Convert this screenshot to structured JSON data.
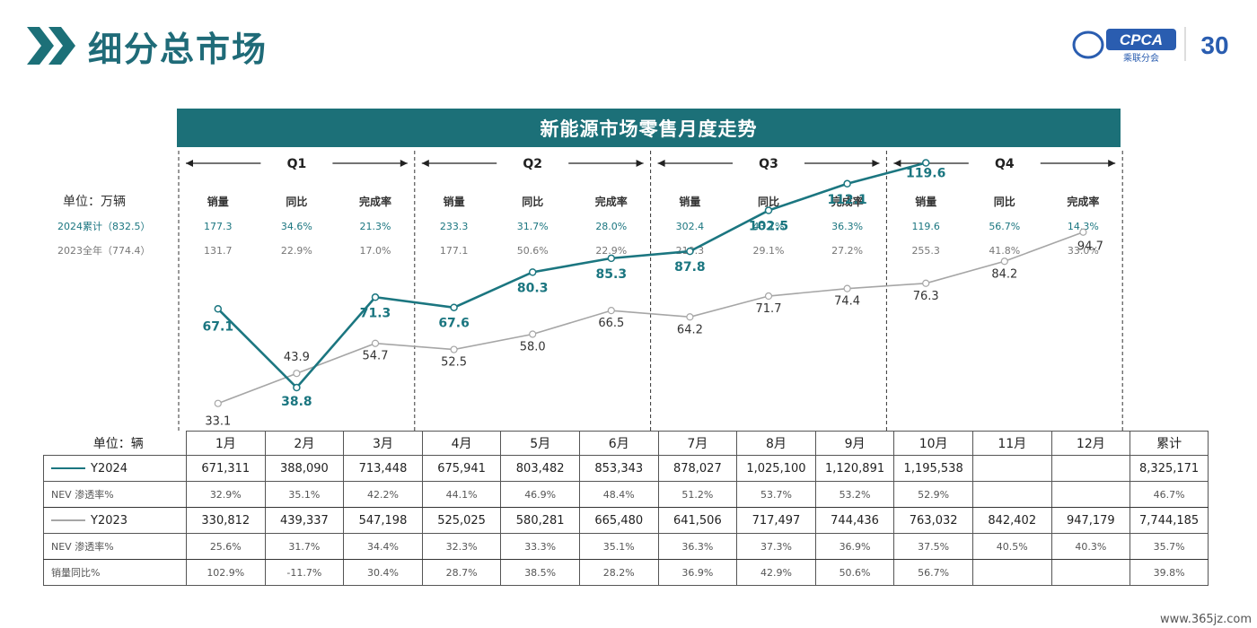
{
  "page_title": "细分总市场",
  "logo": {
    "text": "CPCA",
    "subtext": "乘联分会",
    "badge": "30"
  },
  "chart_data": {
    "type": "line",
    "title": "新能源市场零售月度走势",
    "quarters": [
      "Q1",
      "Q2",
      "Q3",
      "Q4"
    ],
    "unit_label": "单位：万辆",
    "row_2024_label": "2024累计（832.5）",
    "row_2023_label": "2023全年（774.4）",
    "summary_headers": [
      "销量",
      "同比",
      "完成率"
    ],
    "summary_2024": [
      [
        "177.3",
        "34.6%",
        "21.3%"
      ],
      [
        "233.3",
        "31.7%",
        "28.0%"
      ],
      [
        "302.4",
        "43.7%",
        "36.3%"
      ],
      [
        "119.6",
        "56.7%",
        "14.3%"
      ]
    ],
    "summary_2023": [
      [
        "131.7",
        "22.9%",
        "17.0%"
      ],
      [
        "177.1",
        "50.6%",
        "22.9%"
      ],
      [
        "210.3",
        "29.1%",
        "27.2%"
      ],
      [
        "255.3",
        "41.8%",
        "33.0%"
      ]
    ],
    "series": [
      {
        "name": "Y2024",
        "color": "#1b7680",
        "values": [
          67.1,
          38.8,
          71.3,
          67.6,
          80.3,
          85.3,
          87.8,
          102.5,
          112.1,
          119.6
        ]
      },
      {
        "name": "Y2023",
        "color": "#a6a6a6",
        "values": [
          33.1,
          43.9,
          54.7,
          52.5,
          58.0,
          66.5,
          64.2,
          71.7,
          74.4,
          76.3,
          84.2,
          94.7
        ]
      }
    ]
  },
  "table": {
    "unit_label": "单位：辆",
    "months": [
      "1月",
      "2月",
      "3月",
      "4月",
      "5月",
      "6月",
      "7月",
      "8月",
      "9月",
      "10月",
      "11月",
      "12月",
      "累计"
    ],
    "rows": [
      {
        "label": "Y2024",
        "legend": true,
        "color": "#1b7680",
        "values": [
          "671,311",
          "388,090",
          "713,448",
          "675,941",
          "803,482",
          "853,343",
          "878,027",
          "1,025,100",
          "1,120,891",
          "1,195,538",
          "",
          "",
          "8,325,171"
        ]
      },
      {
        "label": "NEV 渗透率%",
        "values": [
          "32.9%",
          "35.1%",
          "42.2%",
          "44.1%",
          "46.9%",
          "48.4%",
          "51.2%",
          "53.7%",
          "53.2%",
          "52.9%",
          "",
          "",
          "46.7%"
        ]
      },
      {
        "label": "Y2023",
        "legend": true,
        "color": "#a6a6a6",
        "values": [
          "330,812",
          "439,337",
          "547,198",
          "525,025",
          "580,281",
          "665,480",
          "641,506",
          "717,497",
          "744,436",
          "763,032",
          "842,402",
          "947,179",
          "7,744,185"
        ]
      },
      {
        "label": "NEV 渗透率%",
        "values": [
          "25.6%",
          "31.7%",
          "34.4%",
          "32.3%",
          "33.3%",
          "35.1%",
          "36.3%",
          "37.3%",
          "36.9%",
          "37.5%",
          "40.5%",
          "40.3%",
          "35.7%"
        ]
      },
      {
        "label": "销量同比%",
        "values": [
          "102.9%",
          "-11.7%",
          "30.4%",
          "28.7%",
          "38.5%",
          "28.2%",
          "36.9%",
          "42.9%",
          "50.6%",
          "56.7%",
          "",
          "",
          "39.8%"
        ]
      }
    ]
  },
  "watermark": "www.365jz.com"
}
